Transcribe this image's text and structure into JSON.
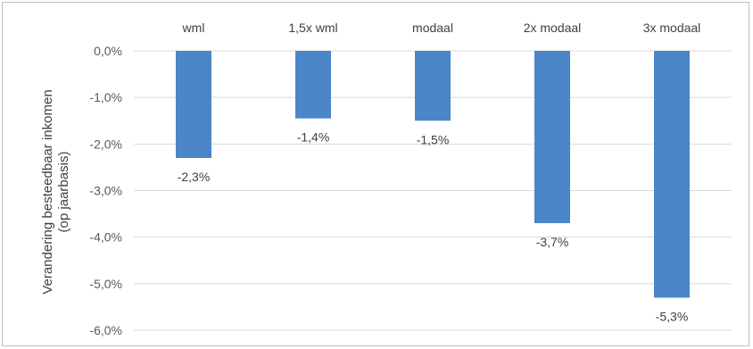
{
  "chart_data": {
    "type": "bar",
    "categories": [
      "wml",
      "1,5x wml",
      "modaal",
      "2x modaal",
      "3x modaal"
    ],
    "values": [
      -2.3,
      -1.45,
      -1.5,
      -3.7,
      -5.3
    ],
    "data_labels": [
      "-2,3%",
      "-1,4%",
      "-1,5%",
      "-3,7%",
      "-5,3%"
    ],
    "ylabel": [
      "Verandering besteedbaar inkomen",
      "(op jaarbasis)"
    ],
    "ylim": [
      -6,
      0
    ],
    "y_ticks": [
      0,
      -1,
      -2,
      -3,
      -4,
      -5,
      -6
    ],
    "y_tick_labels": [
      "0,0%",
      "-1,0%",
      "-2,0%",
      "-3,0%",
      "-4,0%",
      "-5,0%",
      "-6,0%"
    ],
    "grid": true,
    "bar_color": "#4a86c8",
    "grid_color": "#d9d9d9"
  }
}
